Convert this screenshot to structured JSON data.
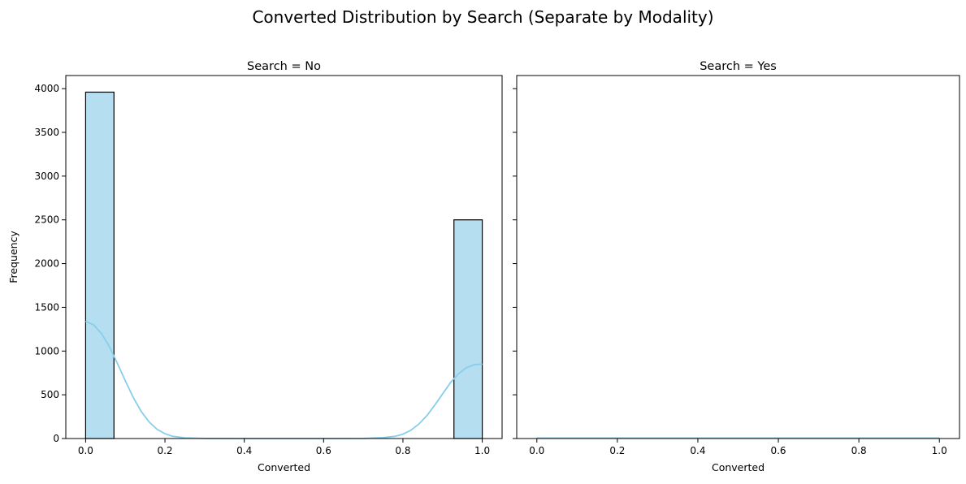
{
  "figure": {
    "suptitle": "Converted Distribution by Search (Separate by Modality)"
  },
  "chart_data": [
    {
      "type": "bar",
      "title": "Search = No",
      "xlabel": "Converted",
      "ylabel": "Frequency",
      "xlim": [
        -0.05,
        1.05
      ],
      "ylim": [
        0,
        4150
      ],
      "xticks": [
        0.0,
        0.2,
        0.4,
        0.6,
        0.8,
        1.0
      ],
      "xtick_labels": [
        "0.0",
        "0.2",
        "0.4",
        "0.6",
        "0.8",
        "1.0"
      ],
      "yticks": [
        0,
        500,
        1000,
        1500,
        2000,
        2500,
        3000,
        3500,
        4000
      ],
      "ytick_labels": [
        "0",
        "500",
        "1000",
        "1500",
        "2000",
        "2500",
        "3000",
        "3500",
        "4000"
      ],
      "bins": [
        {
          "x0": 0.0,
          "x1": 0.0714,
          "count": 3960
        },
        {
          "x0": 0.9286,
          "x1": 1.0,
          "count": 2500
        }
      ],
      "kde": {
        "x": [
          0.0,
          0.02,
          0.04,
          0.06,
          0.08,
          0.1,
          0.12,
          0.14,
          0.16,
          0.18,
          0.2,
          0.22,
          0.25,
          0.3,
          0.4,
          0.5,
          0.6,
          0.7,
          0.75,
          0.78,
          0.8,
          0.82,
          0.84,
          0.86,
          0.88,
          0.9,
          0.92,
          0.94,
          0.96,
          0.98,
          1.0
        ],
        "y": [
          1340,
          1300,
          1200,
          1050,
          860,
          660,
          470,
          310,
          190,
          105,
          55,
          25,
          8,
          1,
          0,
          0,
          0,
          1,
          10,
          25,
          50,
          95,
          165,
          260,
          380,
          510,
          640,
          740,
          810,
          845,
          850
        ]
      },
      "bar_color": "#b5dff0",
      "edge_color": "#000000",
      "kde_color": "#87ceeb"
    },
    {
      "type": "bar",
      "title": "Search = Yes",
      "xlabel": "Converted",
      "ylabel": "",
      "xlim": [
        -0.05,
        1.05
      ],
      "ylim": [
        0,
        4150
      ],
      "xticks": [
        0.0,
        0.2,
        0.4,
        0.6,
        0.8,
        1.0
      ],
      "xtick_labels": [
        "0.0",
        "0.2",
        "0.4",
        "0.6",
        "0.8",
        "1.0"
      ],
      "yticks": [
        0,
        500,
        1000,
        1500,
        2000,
        2500,
        3000,
        3500,
        4000
      ],
      "ytick_labels": [],
      "bins": [],
      "kde": {
        "x": [
          0.0,
          1.0
        ],
        "y": [
          5,
          5
        ]
      },
      "bar_color": "#b5dff0",
      "edge_color": "#000000",
      "kde_color": "#87ceeb"
    }
  ]
}
